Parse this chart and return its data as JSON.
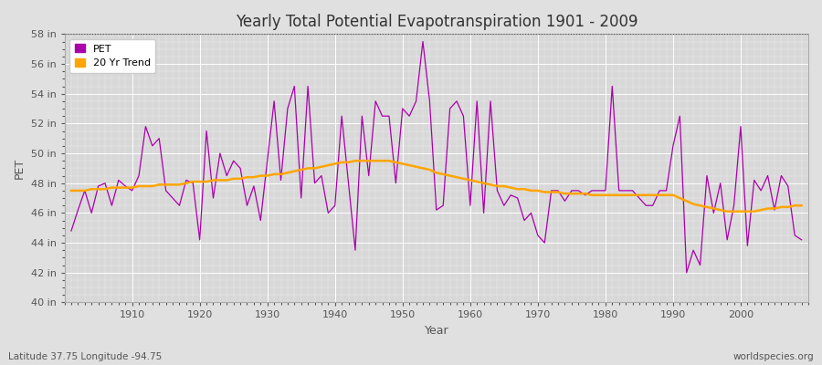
{
  "title": "Yearly Total Potential Evapotranspiration 1901 - 2009",
  "ylabel": "PET",
  "xlabel": "Year",
  "footnote_left": "Latitude 37.75 Longitude -94.75",
  "footnote_right": "worldspecies.org",
  "pet_color": "#AA00AA",
  "trend_color": "#FFA500",
  "fig_bg_color": "#E0E0E0",
  "plot_bg_color": "#D8D8D8",
  "ylim": [
    40,
    58
  ],
  "yticks": [
    40,
    42,
    44,
    46,
    48,
    50,
    52,
    54,
    56,
    58
  ],
  "ytick_labels": [
    "40 in",
    "42 in",
    "44 in",
    "46 in",
    "48 in",
    "50 in",
    "52 in",
    "54 in",
    "56 in",
    "58 in"
  ],
  "xlim": [
    1900,
    2010
  ],
  "xticks": [
    1910,
    1920,
    1930,
    1940,
    1950,
    1960,
    1970,
    1980,
    1990,
    2000
  ],
  "years": [
    1901,
    1902,
    1903,
    1904,
    1905,
    1906,
    1907,
    1908,
    1909,
    1910,
    1911,
    1912,
    1913,
    1914,
    1915,
    1916,
    1917,
    1918,
    1919,
    1920,
    1921,
    1922,
    1923,
    1924,
    1925,
    1926,
    1927,
    1928,
    1929,
    1930,
    1931,
    1932,
    1933,
    1934,
    1935,
    1936,
    1937,
    1938,
    1939,
    1940,
    1941,
    1942,
    1943,
    1944,
    1945,
    1946,
    1947,
    1948,
    1949,
    1950,
    1951,
    1952,
    1953,
    1954,
    1955,
    1956,
    1957,
    1958,
    1959,
    1960,
    1961,
    1962,
    1963,
    1964,
    1965,
    1966,
    1967,
    1968,
    1969,
    1970,
    1971,
    1972,
    1973,
    1974,
    1975,
    1976,
    1977,
    1978,
    1979,
    1980,
    1981,
    1982,
    1983,
    1984,
    1985,
    1986,
    1987,
    1988,
    1989,
    1990,
    1991,
    1992,
    1993,
    1994,
    1995,
    1996,
    1997,
    1998,
    1999,
    2000,
    2001,
    2002,
    2003,
    2004,
    2005,
    2006,
    2007,
    2008,
    2009
  ],
  "pet": [
    44.8,
    46.2,
    47.5,
    46.0,
    47.8,
    48.0,
    46.5,
    48.2,
    47.8,
    47.5,
    48.5,
    51.8,
    50.5,
    51.0,
    47.5,
    47.0,
    46.5,
    48.2,
    48.0,
    44.2,
    51.5,
    47.0,
    50.0,
    48.5,
    49.5,
    49.0,
    46.5,
    47.8,
    45.5,
    49.5,
    53.5,
    48.2,
    53.0,
    54.5,
    47.0,
    54.5,
    48.0,
    48.5,
    46.0,
    46.5,
    52.5,
    48.0,
    43.5,
    52.5,
    48.5,
    53.5,
    52.5,
    52.5,
    48.0,
    53.0,
    52.5,
    53.5,
    57.5,
    53.5,
    46.2,
    46.5,
    53.0,
    53.5,
    52.5,
    46.5,
    53.5,
    46.0,
    53.5,
    47.5,
    46.5,
    47.2,
    47.0,
    45.5,
    46.0,
    44.5,
    44.0,
    47.5,
    47.5,
    46.8,
    47.5,
    47.5,
    47.2,
    47.5,
    47.5,
    47.5,
    54.5,
    47.5,
    47.5,
    47.5,
    47.0,
    46.5,
    46.5,
    47.5,
    47.5,
    50.5,
    52.5,
    42.0,
    43.5,
    42.5,
    48.5,
    46.0,
    48.0,
    44.2,
    46.5,
    51.8,
    43.8,
    48.2,
    47.5,
    48.5,
    46.2,
    48.5,
    47.8,
    44.5,
    44.2
  ],
  "trend": [
    47.5,
    47.5,
    47.5,
    47.6,
    47.6,
    47.6,
    47.7,
    47.7,
    47.7,
    47.7,
    47.8,
    47.8,
    47.8,
    47.9,
    47.9,
    47.9,
    47.9,
    48.0,
    48.1,
    48.1,
    48.1,
    48.2,
    48.2,
    48.2,
    48.3,
    48.3,
    48.4,
    48.4,
    48.5,
    48.5,
    48.6,
    48.6,
    48.7,
    48.8,
    48.9,
    49.0,
    49.0,
    49.1,
    49.2,
    49.3,
    49.4,
    49.4,
    49.5,
    49.5,
    49.5,
    49.5,
    49.5,
    49.5,
    49.4,
    49.3,
    49.2,
    49.1,
    49.0,
    48.9,
    48.7,
    48.6,
    48.5,
    48.4,
    48.3,
    48.2,
    48.1,
    48.0,
    47.9,
    47.8,
    47.8,
    47.7,
    47.6,
    47.6,
    47.5,
    47.5,
    47.4,
    47.4,
    47.4,
    47.3,
    47.3,
    47.3,
    47.3,
    47.2,
    47.2,
    47.2,
    47.2,
    47.2,
    47.2,
    47.2,
    47.2,
    47.2,
    47.2,
    47.2,
    47.2,
    47.2,
    47.0,
    46.8,
    46.6,
    46.5,
    46.4,
    46.3,
    46.2,
    46.1,
    46.1,
    46.1,
    46.1,
    46.1,
    46.2,
    46.3,
    46.3,
    46.4,
    46.4,
    46.5,
    46.5
  ]
}
